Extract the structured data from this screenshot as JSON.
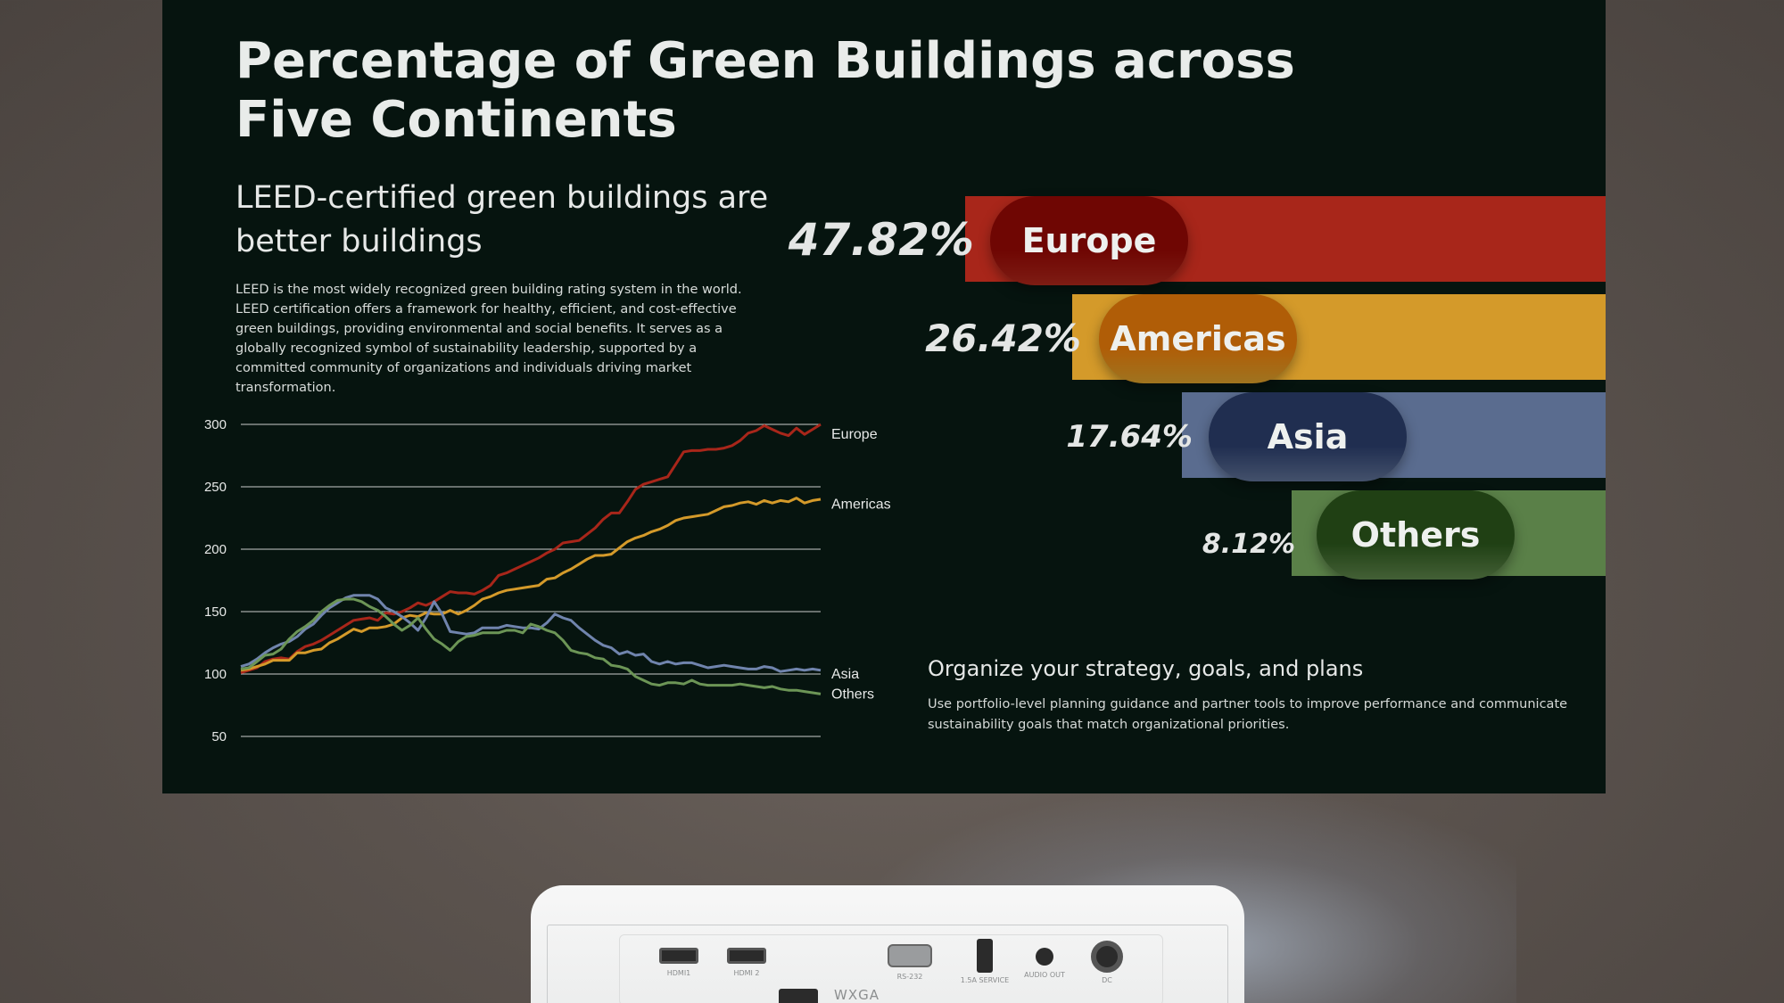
{
  "slide": {
    "title": "Percentage of Green Buildings across Five Continents",
    "subtitle": "LEED-certified green buildings are better buildings",
    "description": "LEED is the most widely recognized green building rating system in the world. LEED certification offers a framework for healthy, efficient, and cost-effective green buildings, providing environmental and social benefits. It serves as a globally recognized symbol of sustainability leadership, supported by a committed community of organizations and individuals driving market transformation.",
    "strategy_heading": "Organize your strategy, goals, and plans",
    "strategy_text": "Use portfolio-level planning guidance and partner tools to improve performance and communicate sustainability goals that match organizational priorities."
  },
  "colors": {
    "europe": "#a8261a",
    "americas": "#d49a2a",
    "asia": "#5a6c8f",
    "others": "#5a8048",
    "background": "#06140f"
  },
  "chart_data": [
    {
      "type": "bar",
      "categories": [
        "Europe",
        "Americas",
        "Asia",
        "Others"
      ],
      "values": [
        47.82,
        26.42,
        17.64,
        8.12
      ],
      "value_labels": [
        "47.82%",
        "26.42%",
        "17.64%",
        "8.12%"
      ]
    },
    {
      "type": "line",
      "ylim": [
        50,
        300
      ],
      "yticks": [
        300,
        250,
        200,
        150,
        100,
        50
      ],
      "grid": true,
      "x": [
        0,
        1,
        2,
        3,
        4,
        5,
        6,
        7,
        8,
        9,
        10,
        11,
        12,
        13,
        14,
        15,
        16,
        17,
        18,
        19,
        20,
        21,
        22,
        23,
        24,
        25,
        26,
        27,
        28,
        29,
        30,
        31,
        32,
        33,
        34,
        35,
        36,
        37,
        38,
        39,
        40,
        41,
        42,
        43,
        44,
        45,
        46,
        47,
        48,
        49,
        50,
        51,
        52,
        53,
        54,
        55,
        56,
        57,
        58,
        59,
        60,
        61,
        62,
        63,
        64,
        65,
        66,
        67,
        68,
        69,
        70,
        71,
        72
      ],
      "series": [
        {
          "name": "Europe",
          "values": [
            101,
            103,
            105,
            110,
            112,
            113,
            112,
            118,
            122,
            124,
            127,
            131,
            135,
            139,
            143,
            144,
            145,
            143,
            149,
            148,
            150,
            153,
            157,
            155,
            158,
            162,
            166,
            165,
            165,
            164,
            167,
            171,
            179,
            181,
            184,
            187,
            190,
            193,
            197,
            200,
            205,
            206,
            207,
            212,
            217,
            224,
            229,
            229,
            238,
            248,
            252,
            254,
            256,
            258,
            268,
            278,
            279,
            279,
            280,
            280,
            281,
            283,
            287,
            293,
            295,
            299,
            296,
            293,
            291,
            297,
            292,
            296,
            300
          ],
          "label_y": 292
        },
        {
          "name": "Americas",
          "values": [
            103,
            104,
            106,
            108,
            111,
            111,
            111,
            117,
            117,
            119,
            120,
            125,
            128,
            132,
            136,
            134,
            137,
            137,
            138,
            140,
            145,
            147,
            146,
            149,
            148,
            148,
            151,
            148,
            151,
            155,
            160,
            162,
            165,
            167,
            168,
            169,
            170,
            171,
            176,
            177,
            181,
            184,
            188,
            192,
            195,
            195,
            196,
            201,
            206,
            209,
            211,
            214,
            216,
            219,
            223,
            225,
            226,
            227,
            228,
            231,
            234,
            235,
            237,
            238,
            236,
            239,
            237,
            239,
            238,
            241,
            237,
            239,
            240
          ],
          "label_y": 236
        },
        {
          "name": "Asia",
          "values": [
            106,
            108,
            112,
            117,
            121,
            124,
            126,
            130,
            136,
            140,
            147,
            153,
            157,
            161,
            163,
            163,
            163,
            160,
            153,
            150,
            146,
            141,
            135,
            145,
            158,
            148,
            134,
            133,
            132,
            133,
            137,
            137,
            137,
            139,
            138,
            137,
            137,
            136,
            141,
            148,
            145,
            143,
            137,
            132,
            127,
            123,
            121,
            116,
            118,
            115,
            116,
            110,
            108,
            110,
            108,
            109,
            109,
            107,
            105,
            106,
            107,
            106,
            105,
            104,
            104,
            106,
            105,
            102,
            103,
            104,
            103,
            104,
            103
          ],
          "label_y": 100
        },
        {
          "name": "Others",
          "values": [
            104,
            105,
            110,
            115,
            116,
            120,
            128,
            134,
            138,
            143,
            150,
            155,
            159,
            160,
            160,
            158,
            154,
            151,
            146,
            140,
            135,
            139,
            145,
            136,
            128,
            124,
            119,
            126,
            130,
            131,
            133,
            133,
            133,
            135,
            135,
            133,
            140,
            138,
            135,
            133,
            127,
            119,
            117,
            116,
            113,
            112,
            107,
            106,
            104,
            98,
            95,
            92,
            91,
            93,
            93,
            92,
            95,
            92,
            91,
            91,
            91,
            91,
            92,
            91,
            90,
            89,
            90,
            88,
            87,
            87,
            86,
            85,
            84
          ],
          "label_y": 84
        }
      ]
    }
  ],
  "projector": {
    "ports": [
      "HDMI1",
      "HDMI 2",
      "RS-232",
      "1.5A SERVICE",
      "AUDIO OUT",
      "DC"
    ],
    "model_text": "WXGA"
  }
}
